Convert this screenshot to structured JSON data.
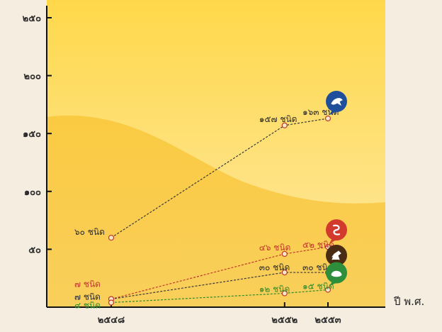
{
  "chart_data": {
    "type": "line",
    "x_unit_label": "ปี พ.ศ.",
    "categories": [
      "๒๕๔๘",
      "๒๕๕๒",
      "๒๕๕๓"
    ],
    "y_ticks": [
      "๕๐",
      "๑๐๐",
      "๑๕๐",
      "๒๐๐",
      "๒๕๐"
    ],
    "ylim": [
      0,
      250
    ],
    "series": [
      {
        "icon": "bird-icon",
        "color": "#3a3a3a",
        "label_color": "#2b2b2b",
        "badge_color": "#1f4f9a",
        "values": [
          60,
          157,
          163
        ],
        "labels": [
          "๖๐ ชนิด",
          "๑๕๗ ชนิด",
          "๑๖๓ ชนิด"
        ]
      },
      {
        "icon": "snake-icon",
        "color": "#c0392b",
        "label_color": "#c0392b",
        "badge_color": "#d23a2e",
        "values": [
          7,
          46,
          52
        ],
        "labels": [
          "๗ ชนิด",
          "๔๖ ชนิด",
          "๕๒ ชนิด"
        ]
      },
      {
        "icon": "monkey-icon",
        "color": "#3a3a3a",
        "label_color": "#2b2b2b",
        "badge_color": "#4a2c14",
        "values": [
          7,
          30,
          30
        ],
        "labels": [
          "๗ ชนิด",
          "๓๐ ชนิด",
          "๓๐ ชนิด"
        ]
      },
      {
        "icon": "frog-icon",
        "color": "#2e8b2e",
        "label_color": "#2e8b2e",
        "badge_color": "#2d8f3c",
        "values": [
          4,
          12,
          15
        ],
        "labels": [
          "๔ ชนิด",
          "๑๒ ชนิด",
          "๑๕ ชนิด"
        ]
      }
    ]
  }
}
